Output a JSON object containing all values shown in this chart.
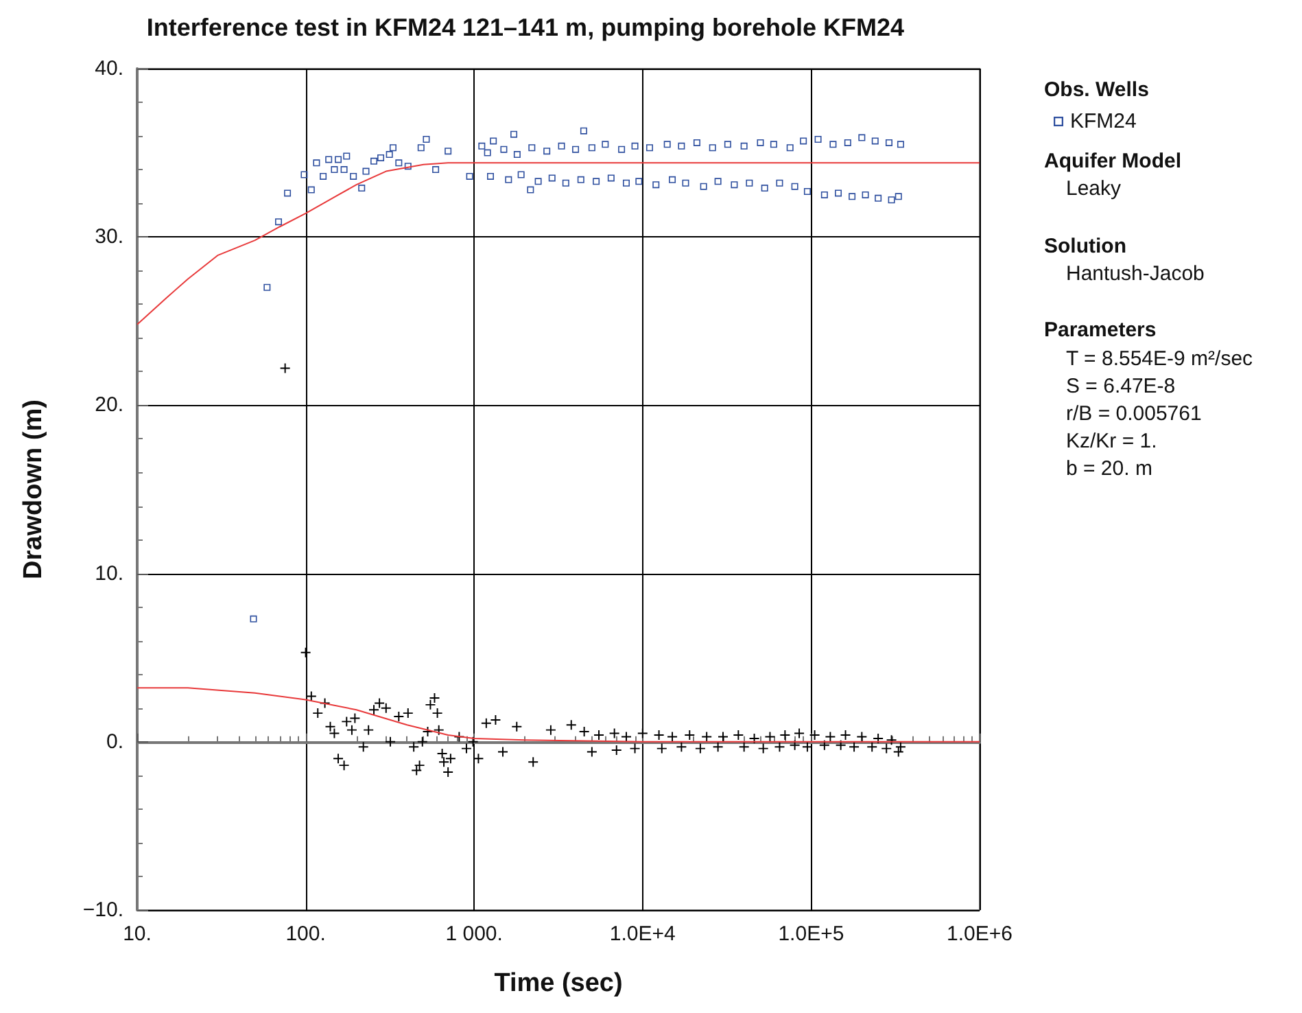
{
  "chart_data": {
    "type": "scatter",
    "title": "Interference test in KFM24 121–141 m, pumping borehole KFM24",
    "xlabel": "Time (sec)",
    "ylabel": "Drawdown (m)",
    "log": "x",
    "grid": true,
    "legend": "right",
    "xlim": [
      10,
      1000000
    ],
    "xticks": [
      {
        "value": 10,
        "label": "10."
      },
      {
        "value": 100,
        "label": "100."
      },
      {
        "value": 1000,
        "label": "1 000."
      },
      {
        "value": 10000,
        "label": "1.0E+4"
      },
      {
        "value": 100000,
        "label": "1.0E+5"
      },
      {
        "value": 1000000,
        "label": "1.0E+6"
      }
    ],
    "ylim": [
      -10,
      40
    ],
    "yticks": [
      {
        "value": 40,
        "label": "40."
      },
      {
        "value": 30,
        "label": "30."
      },
      {
        "value": 20,
        "label": "20."
      },
      {
        "value": 10,
        "label": "10."
      },
      {
        "value": 0,
        "label": "0."
      },
      {
        "value": -10,
        "label": "−10."
      }
    ],
    "annotations": [
      "Obs. Wells",
      "Aquifer Model",
      "Leaky",
      "Solution",
      "Hantush-Jacob",
      "Parameters",
      "T = 8.554E-9 m²/sec",
      "S = 6.47E-8",
      "r/B = 0.005761",
      "Kz/Kr = 1.",
      "b = 20. m"
    ],
    "series": [
      {
        "name": "KFM24",
        "marker": "square",
        "color": "#2e4f9f",
        "x": [
          49,
          59,
          69,
          78,
          98,
          108,
          116,
          127,
          137,
          148,
          156,
          169,
          175,
          192,
          215,
          228,
          254,
          279,
          314,
          330,
          357,
          405,
          484,
          520,
          591,
          700,
          940,
          1110,
          1300,
          1720,
          2160,
          4470,
          1200,
          1500,
          1800,
          2200,
          2700,
          3300,
          4000,
          5000,
          6000,
          7500,
          9000,
          11000,
          14000,
          17000,
          21000,
          26000,
          32000,
          40000,
          50000,
          60000,
          75000,
          90000,
          110000,
          135000,
          165000,
          200000,
          240000,
          290000,
          340000,
          1250,
          1600,
          1900,
          2400,
          2900,
          3500,
          4300,
          5300,
          6500,
          8000,
          9500,
          12000,
          15000,
          18000,
          23000,
          28000,
          35000,
          43000,
          53000,
          65000,
          80000,
          95000,
          120000,
          145000,
          175000,
          210000,
          250000,
          300000,
          330000
        ],
        "values": [
          7.3,
          27.0,
          30.9,
          32.6,
          33.7,
          32.8,
          34.4,
          33.6,
          34.6,
          34.0,
          34.6,
          34.0,
          34.8,
          33.6,
          32.9,
          33.9,
          34.5,
          34.7,
          34.9,
          35.3,
          34.4,
          34.2,
          35.3,
          35.8,
          34.0,
          35.1,
          33.6,
          35.4,
          35.7,
          36.1,
          32.8,
          36.3,
          35.0,
          35.2,
          34.9,
          35.3,
          35.1,
          35.4,
          35.2,
          35.3,
          35.5,
          35.2,
          35.4,
          35.3,
          35.5,
          35.4,
          35.6,
          35.3,
          35.5,
          35.4,
          35.6,
          35.5,
          35.3,
          35.7,
          35.8,
          35.5,
          35.6,
          35.9,
          35.7,
          35.6,
          35.5,
          33.6,
          33.4,
          33.7,
          33.3,
          33.5,
          33.2,
          33.4,
          33.3,
          33.5,
          33.2,
          33.3,
          33.1,
          33.4,
          33.2,
          33.0,
          33.3,
          33.1,
          33.2,
          32.9,
          33.2,
          33.0,
          32.7,
          32.5,
          32.6,
          32.4,
          32.5,
          32.3,
          32.2,
          32.4
        ]
      },
      {
        "type": "line",
        "marker": "none",
        "color": "#e8393a",
        "x": [
          10,
          15,
          20,
          30,
          50,
          70,
          100,
          150,
          200,
          300,
          500,
          700,
          1000,
          10000,
          100000,
          1000000
        ],
        "values": [
          24.8,
          26.4,
          27.5,
          28.9,
          29.8,
          30.6,
          31.4,
          32.4,
          33.1,
          33.9,
          34.3,
          34.4,
          34.4,
          34.4,
          34.4,
          34.4
        ]
      },
      {
        "marker": "cross",
        "color": "#000000",
        "x": [
          75.5,
          100,
          108,
          118,
          130,
          140,
          148,
          156,
          169,
          175,
          188,
          196,
          220,
          236,
          254,
          274,
          300,
          318,
          357,
          405,
          438,
          455,
          474,
          493,
          530,
          550,
          582,
          605,
          617,
          646,
          661,
          700,
          725,
          815,
          900,
          985,
          1060,
          1180,
          1340,
          1480,
          1790,
          2240,
          2850,
          3770,
          4500,
          5500,
          6800,
          8000,
          10000,
          12500,
          15000,
          19000,
          24000,
          30000,
          37000,
          46000,
          57000,
          70000,
          85000,
          105000,
          130000,
          160000,
          200000,
          250000,
          300000,
          340000,
          5000,
          7000,
          9000,
          13000,
          17000,
          22000,
          28000,
          40000,
          52000,
          65000,
          80000,
          95000,
          120000,
          150000,
          180000,
          230000,
          280000,
          330000
        ],
        "values": [
          22.2,
          5.3,
          2.7,
          1.7,
          2.3,
          0.9,
          0.5,
          -1.0,
          -1.4,
          1.2,
          0.7,
          1.4,
          -0.3,
          0.7,
          1.9,
          2.3,
          2.0,
          0.0,
          1.5,
          1.7,
          -0.3,
          -1.7,
          -1.4,
          0.0,
          0.6,
          2.2,
          2.6,
          1.7,
          0.7,
          -0.7,
          -1.2,
          -1.8,
          -1.0,
          0.3,
          -0.4,
          0.0,
          -1.0,
          1.1,
          1.3,
          -0.6,
          0.9,
          -1.2,
          0.7,
          1.0,
          0.6,
          0.4,
          0.5,
          0.3,
          0.5,
          0.4,
          0.3,
          0.4,
          0.3,
          0.3,
          0.4,
          0.2,
          0.3,
          0.4,
          0.5,
          0.4,
          0.3,
          0.4,
          0.3,
          0.2,
          0.1,
          -0.3,
          -0.6,
          -0.5,
          -0.4,
          -0.4,
          -0.3,
          -0.4,
          -0.3,
          -0.3,
          -0.4,
          -0.3,
          -0.2,
          -0.3,
          -0.2,
          -0.2,
          -0.3,
          -0.3,
          -0.4,
          -0.6
        ]
      },
      {
        "type": "line",
        "marker": "none",
        "color": "#e8393a",
        "x": [
          10,
          20,
          50,
          100,
          200,
          400,
          700,
          1000,
          2000,
          10000,
          1000000
        ],
        "values": [
          3.2,
          3.2,
          2.9,
          2.5,
          1.9,
          1.0,
          0.4,
          0.2,
          0.1,
          0,
          0
        ]
      }
    ]
  }
}
